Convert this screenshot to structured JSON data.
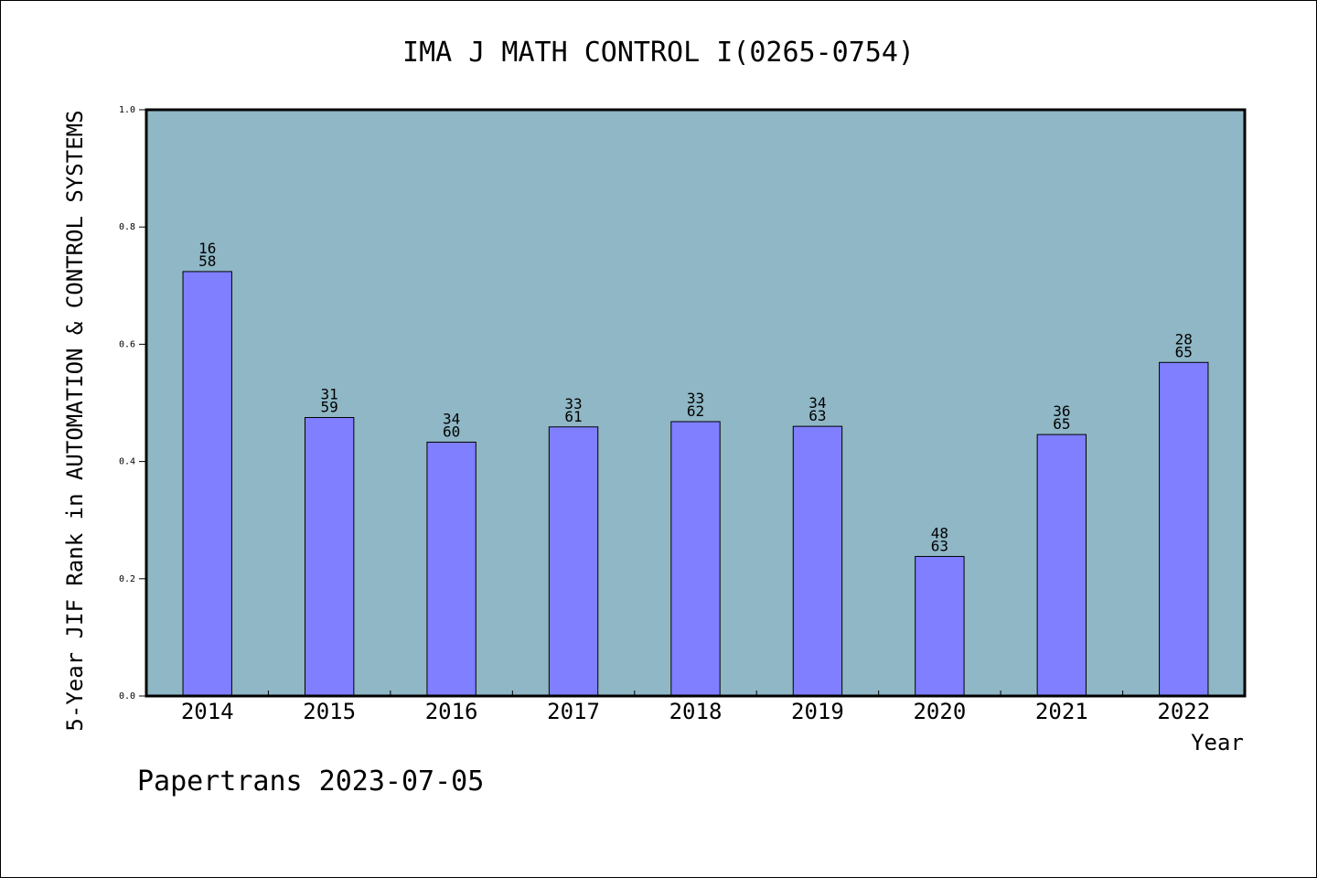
{
  "chart_data": {
    "type": "bar",
    "title": "IMA J MATH CONTROL I(0265-0754)",
    "xlabel": "Year",
    "ylabel": "5-Year JIF Rank in AUTOMATION & CONTROL SYSTEMS",
    "ylim": [
      0,
      1.0
    ],
    "yticks": [
      "0.0",
      "0.2",
      "0.4",
      "0.6",
      "0.8",
      "1.0"
    ],
    "categories": [
      "2014",
      "2015",
      "2016",
      "2017",
      "2018",
      "2019",
      "2020",
      "2021",
      "2022"
    ],
    "values": [
      0.724,
      0.475,
      0.433,
      0.459,
      0.468,
      0.46,
      0.238,
      0.446,
      0.569
    ],
    "labels_top": [
      "16",
      "31",
      "34",
      "33",
      "33",
      "34",
      "48",
      "36",
      "28"
    ],
    "labels_bottom": [
      "58",
      "59",
      "60",
      "61",
      "62",
      "63",
      "63",
      "65",
      "65"
    ],
    "grid": false,
    "colors": {
      "plot_background": "#8fb7c6",
      "bar_fill": "#7f7fff",
      "bar_stroke": "#000000"
    }
  },
  "footer": {
    "credit": "Papertrans 2023-07-05"
  }
}
